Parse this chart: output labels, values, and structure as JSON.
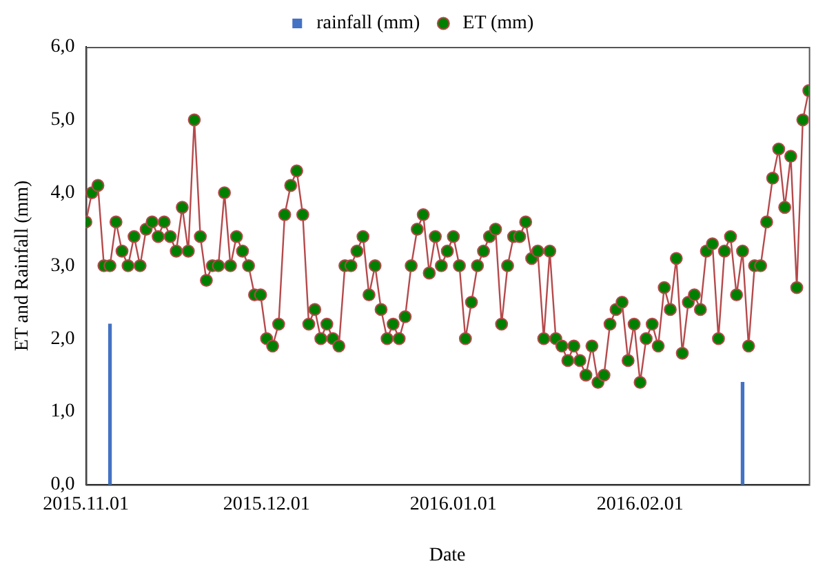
{
  "chart_data": {
    "type": "line",
    "xlabel": "Date",
    "ylabel": "ET and Rainfall (mm)",
    "legend": "top",
    "grid": false,
    "marker": "circle",
    "xlim": [
      "2015-11-01",
      "2016-02-29"
    ],
    "xticks": [
      {
        "value": "2015-11-01",
        "label": "2015.11.01"
      },
      {
        "value": "2015-12-01",
        "label": "2015.12.01"
      },
      {
        "value": "2016-01-01",
        "label": "2016.01.01"
      },
      {
        "value": "2016-02-01",
        "label": "2016.02.01"
      }
    ],
    "ylim": [
      0,
      6
    ],
    "yticks": [
      {
        "value": 0,
        "label": "0,0"
      },
      {
        "value": 1,
        "label": "1,0"
      },
      {
        "value": 2,
        "label": "2,0"
      },
      {
        "value": 3,
        "label": "3,0"
      },
      {
        "value": 4,
        "label": "4,0"
      },
      {
        "value": 5,
        "label": "5,0"
      },
      {
        "value": 6,
        "label": "6,0"
      }
    ],
    "series": [
      {
        "name": "rainfall (mm)",
        "type": "bar",
        "color": "#4472c4",
        "x": [
          "2015-11-05",
          "2016-02-18"
        ],
        "values": [
          2.2,
          1.4
        ]
      },
      {
        "name": "ET (mm)",
        "color": "#008000",
        "x": [
          "2015-11-01",
          "2015-11-02",
          "2015-11-03",
          "2015-11-04",
          "2015-11-05",
          "2015-11-06",
          "2015-11-07",
          "2015-11-08",
          "2015-11-09",
          "2015-11-10",
          "2015-11-11",
          "2015-11-12",
          "2015-11-13",
          "2015-11-14",
          "2015-11-15",
          "2015-11-16",
          "2015-11-17",
          "2015-11-18",
          "2015-11-19",
          "2015-11-20",
          "2015-11-21",
          "2015-11-22",
          "2015-11-23",
          "2015-11-24",
          "2015-11-25",
          "2015-11-26",
          "2015-11-27",
          "2015-11-28",
          "2015-11-29",
          "2015-11-30",
          "2015-12-01",
          "2015-12-02",
          "2015-12-03",
          "2015-12-04",
          "2015-12-05",
          "2015-12-06",
          "2015-12-07",
          "2015-12-08",
          "2015-12-09",
          "2015-12-10",
          "2015-12-11",
          "2015-12-12",
          "2015-12-13",
          "2015-12-14",
          "2015-12-15",
          "2015-12-16",
          "2015-12-17",
          "2015-12-18",
          "2015-12-19",
          "2015-12-20",
          "2015-12-21",
          "2015-12-22",
          "2015-12-23",
          "2015-12-24",
          "2015-12-25",
          "2015-12-26",
          "2015-12-27",
          "2015-12-28",
          "2015-12-29",
          "2015-12-30",
          "2015-12-31",
          "2016-01-01",
          "2016-01-02",
          "2016-01-03",
          "2016-01-04",
          "2016-01-05",
          "2016-01-06",
          "2016-01-07",
          "2016-01-08",
          "2016-01-09",
          "2016-01-10",
          "2016-01-11",
          "2016-01-12",
          "2016-01-13",
          "2016-01-14",
          "2016-01-15",
          "2016-01-16",
          "2016-01-17",
          "2016-01-18",
          "2016-01-19",
          "2016-01-20",
          "2016-01-21",
          "2016-01-22",
          "2016-01-23",
          "2016-01-24",
          "2016-01-25",
          "2016-01-26",
          "2016-01-27",
          "2016-01-28",
          "2016-01-29",
          "2016-01-30",
          "2016-01-31",
          "2016-02-01",
          "2016-02-02",
          "2016-02-03",
          "2016-02-04",
          "2016-02-05",
          "2016-02-06",
          "2016-02-07",
          "2016-02-08",
          "2016-02-09",
          "2016-02-10",
          "2016-02-11",
          "2016-02-12",
          "2016-02-13",
          "2016-02-14",
          "2016-02-15",
          "2016-02-16",
          "2016-02-17",
          "2016-02-18",
          "2016-02-19",
          "2016-02-20",
          "2016-02-21",
          "2016-02-22",
          "2016-02-23",
          "2016-02-24",
          "2016-02-25",
          "2016-02-26",
          "2016-02-27",
          "2016-02-28",
          "2016-02-29"
        ],
        "values": [
          3.6,
          4.0,
          4.1,
          3.0,
          3.0,
          3.6,
          3.2,
          3.0,
          3.4,
          3.0,
          3.5,
          3.6,
          3.4,
          3.6,
          3.4,
          3.2,
          3.8,
          3.2,
          5.0,
          3.4,
          2.8,
          3.0,
          3.0,
          4.0,
          3.0,
          3.4,
          3.2,
          3.0,
          2.6,
          2.6,
          2.0,
          1.9,
          2.2,
          3.7,
          4.1,
          4.3,
          3.7,
          2.2,
          2.4,
          2.0,
          2.2,
          2.0,
          1.9,
          3.0,
          3.0,
          3.2,
          3.4,
          2.6,
          3.0,
          2.4,
          2.0,
          2.2,
          2.0,
          2.3,
          3.0,
          3.5,
          3.7,
          2.9,
          3.4,
          3.0,
          3.2,
          3.4,
          3.0,
          2.0,
          2.5,
          3.0,
          3.2,
          3.4,
          3.5,
          2.2,
          3.0,
          3.4,
          3.4,
          3.6,
          3.1,
          3.2,
          2.0,
          3.2,
          2.0,
          1.9,
          1.7,
          1.9,
          1.7,
          1.5,
          1.9,
          1.4,
          1.5,
          2.2,
          2.4,
          2.5,
          1.7,
          2.2,
          1.4,
          2.0,
          2.2,
          1.9,
          2.7,
          2.4,
          3.1,
          1.8,
          2.5,
          2.6,
          2.4,
          3.2,
          3.3,
          2.0,
          3.2,
          3.4,
          2.6,
          3.2,
          1.9,
          3.0,
          3.0,
          3.6,
          4.2,
          4.6,
          3.8,
          4.5,
          2.7,
          5.0,
          5.4
        ]
      }
    ]
  }
}
